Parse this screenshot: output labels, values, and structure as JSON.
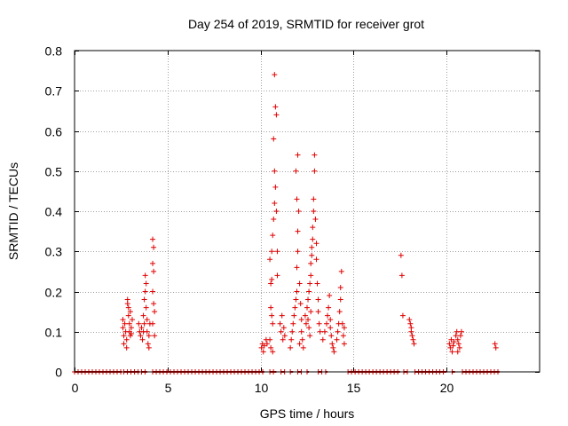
{
  "chart_data": {
    "type": "scatter",
    "title": "Day 254 of 2019, SRMTID for receiver grot",
    "xlabel": "GPS time / hours",
    "ylabel": "SRMTID / TECUs",
    "xlim": [
      0,
      25
    ],
    "ylim": [
      0,
      0.8
    ],
    "xticks": [
      0,
      5,
      10,
      15,
      20
    ],
    "xtick_labels": [
      "0",
      "5",
      "10",
      "15",
      "20"
    ],
    "yticks": [
      0,
      0.1,
      0.2,
      0.3,
      0.4,
      0.5,
      0.6,
      0.7,
      0.8
    ],
    "ytick_labels": [
      "0",
      "0.1",
      "0.2",
      "0.3",
      "0.4",
      "0.5",
      "0.6",
      "0.7",
      "0.8"
    ],
    "grid": true,
    "marker": "+",
    "marker_color": "#e00000",
    "baseline_spans": [
      [
        0.0,
        2.55
      ],
      [
        2.65,
        3.5
      ],
      [
        3.6,
        3.9
      ],
      [
        4.2,
        10.2
      ],
      [
        10.5,
        10.85
      ],
      [
        11.1,
        11.3
      ],
      [
        11.6,
        11.75
      ],
      [
        12.0,
        12.2
      ],
      [
        12.5,
        12.6
      ],
      [
        13.1,
        13.3
      ],
      [
        13.5,
        13.6
      ],
      [
        14.7,
        17.5
      ],
      [
        17.7,
        17.9
      ],
      [
        18.3,
        20.0
      ],
      [
        20.3,
        20.45
      ],
      [
        20.85,
        22.85
      ]
    ],
    "series": [
      {
        "name": "SRMTID",
        "points": [
          [
            2.6,
            0.13
          ],
          [
            2.6,
            0.11
          ],
          [
            2.65,
            0.09
          ],
          [
            2.65,
            0.07
          ],
          [
            2.7,
            0.12
          ],
          [
            2.75,
            0.1
          ],
          [
            2.8,
            0.08
          ],
          [
            2.85,
            0.17
          ],
          [
            2.85,
            0.18
          ],
          [
            2.9,
            0.16
          ],
          [
            2.9,
            0.14
          ],
          [
            2.95,
            0.1
          ],
          [
            2.95,
            0.12
          ],
          [
            3.0,
            0.09
          ],
          [
            3.0,
            0.15
          ],
          [
            3.05,
            0.11
          ],
          [
            3.1,
            0.13
          ],
          [
            2.8,
            0.06
          ],
          [
            3.05,
            0.095
          ],
          [
            3.45,
            0.12
          ],
          [
            3.5,
            0.1
          ],
          [
            3.55,
            0.09
          ],
          [
            3.6,
            0.11
          ],
          [
            3.65,
            0.08
          ],
          [
            3.7,
            0.14
          ],
          [
            3.75,
            0.18
          ],
          [
            3.8,
            0.2
          ],
          [
            3.8,
            0.24
          ],
          [
            3.85,
            0.22
          ],
          [
            3.85,
            0.16
          ],
          [
            3.9,
            0.13
          ],
          [
            3.9,
            0.1
          ],
          [
            3.95,
            0.07
          ],
          [
            4.0,
            0.06
          ],
          [
            4.0,
            0.09
          ],
          [
            4.05,
            0.12
          ],
          [
            3.75,
            0.12
          ],
          [
            3.7,
            0.1
          ],
          [
            4.2,
            0.33
          ],
          [
            4.25,
            0.31
          ],
          [
            4.2,
            0.27
          ],
          [
            4.25,
            0.25
          ],
          [
            4.2,
            0.2
          ],
          [
            4.25,
            0.17
          ],
          [
            4.3,
            0.15
          ],
          [
            4.2,
            0.12
          ],
          [
            4.3,
            0.09
          ],
          [
            10.05,
            0.06
          ],
          [
            10.1,
            0.07
          ],
          [
            10.15,
            0.05
          ],
          [
            10.2,
            0.065
          ],
          [
            10.3,
            0.08
          ],
          [
            10.35,
            0.07
          ],
          [
            10.5,
            0.28
          ],
          [
            10.55,
            0.22
          ],
          [
            10.6,
            0.3
          ],
          [
            10.65,
            0.34
          ],
          [
            10.7,
            0.38
          ],
          [
            10.75,
            0.42
          ],
          [
            10.75,
            0.5
          ],
          [
            10.8,
            0.46
          ],
          [
            10.8,
            0.66
          ],
          [
            10.85,
            0.64
          ],
          [
            10.75,
            0.74
          ],
          [
            10.7,
            0.58
          ],
          [
            10.85,
            0.4
          ],
          [
            10.9,
            0.3
          ],
          [
            10.9,
            0.24
          ],
          [
            10.6,
            0.23
          ],
          [
            10.55,
            0.16
          ],
          [
            10.6,
            0.14
          ],
          [
            10.65,
            0.12
          ],
          [
            10.5,
            0.08
          ],
          [
            10.55,
            0.06
          ],
          [
            10.65,
            0.05
          ],
          [
            11.05,
            0.12
          ],
          [
            11.1,
            0.1
          ],
          [
            11.15,
            0.14
          ],
          [
            11.2,
            0.08
          ],
          [
            11.25,
            0.11
          ],
          [
            11.3,
            0.09
          ],
          [
            11.6,
            0.06
          ],
          [
            11.65,
            0.08
          ],
          [
            11.7,
            0.1
          ],
          [
            11.75,
            0.12
          ],
          [
            11.8,
            0.14
          ],
          [
            11.85,
            0.16
          ],
          [
            11.9,
            0.18
          ],
          [
            11.95,
            0.2
          ],
          [
            11.95,
            0.26
          ],
          [
            12.0,
            0.3
          ],
          [
            12.0,
            0.35
          ],
          [
            11.95,
            0.43
          ],
          [
            11.9,
            0.5
          ],
          [
            12.0,
            0.54
          ],
          [
            12.05,
            0.4
          ],
          [
            12.1,
            0.22
          ],
          [
            12.15,
            0.17
          ],
          [
            12.2,
            0.13
          ],
          [
            12.2,
            0.1
          ],
          [
            12.25,
            0.08
          ],
          [
            12.3,
            0.06
          ],
          [
            12.1,
            0.07
          ],
          [
            12.4,
            0.14
          ],
          [
            12.45,
            0.12
          ],
          [
            12.5,
            0.16
          ],
          [
            12.55,
            0.18
          ],
          [
            12.6,
            0.2
          ],
          [
            12.65,
            0.22
          ],
          [
            12.7,
            0.24
          ],
          [
            12.7,
            0.27
          ],
          [
            12.75,
            0.29
          ],
          [
            12.75,
            0.31
          ],
          [
            12.8,
            0.33
          ],
          [
            12.8,
            0.36
          ],
          [
            12.85,
            0.4
          ],
          [
            12.85,
            0.43
          ],
          [
            12.9,
            0.5
          ],
          [
            12.9,
            0.54
          ],
          [
            12.95,
            0.38
          ],
          [
            13.0,
            0.32
          ],
          [
            13.0,
            0.28
          ],
          [
            13.05,
            0.22
          ],
          [
            13.1,
            0.18
          ],
          [
            13.1,
            0.15
          ],
          [
            13.15,
            0.12
          ],
          [
            13.2,
            0.1
          ],
          [
            12.6,
            0.11
          ],
          [
            12.65,
            0.09
          ],
          [
            12.55,
            0.13
          ],
          [
            12.7,
            0.15
          ],
          [
            13.35,
            0.08
          ],
          [
            13.45,
            0.1
          ],
          [
            13.55,
            0.12
          ],
          [
            13.6,
            0.14
          ],
          [
            13.65,
            0.16
          ],
          [
            13.7,
            0.19
          ],
          [
            13.75,
            0.11
          ],
          [
            13.8,
            0.09
          ],
          [
            13.85,
            0.07
          ],
          [
            13.9,
            0.06
          ],
          [
            13.95,
            0.05
          ],
          [
            13.75,
            0.13
          ],
          [
            14.1,
            0.08
          ],
          [
            14.15,
            0.1
          ],
          [
            14.2,
            0.12
          ],
          [
            14.25,
            0.15
          ],
          [
            14.3,
            0.18
          ],
          [
            14.3,
            0.21
          ],
          [
            14.35,
            0.25
          ],
          [
            14.4,
            0.12
          ],
          [
            14.45,
            0.09
          ],
          [
            14.5,
            0.07
          ],
          [
            14.5,
            0.11
          ],
          [
            17.55,
            0.29
          ],
          [
            17.6,
            0.24
          ],
          [
            17.65,
            0.14
          ],
          [
            18.0,
            0.13
          ],
          [
            18.05,
            0.12
          ],
          [
            18.1,
            0.1
          ],
          [
            18.15,
            0.09
          ],
          [
            18.2,
            0.08
          ],
          [
            18.25,
            0.07
          ],
          [
            18.1,
            0.11
          ],
          [
            20.15,
            0.07
          ],
          [
            20.2,
            0.06
          ],
          [
            20.25,
            0.08
          ],
          [
            20.3,
            0.05
          ],
          [
            20.35,
            0.065
          ],
          [
            20.4,
            0.075
          ],
          [
            20.5,
            0.09
          ],
          [
            20.55,
            0.1
          ],
          [
            20.6,
            0.08
          ],
          [
            20.65,
            0.07
          ],
          [
            20.7,
            0.06
          ],
          [
            20.75,
            0.09
          ],
          [
            20.8,
            0.1
          ],
          [
            20.6,
            0.05
          ],
          [
            22.6,
            0.07
          ],
          [
            22.65,
            0.06
          ]
        ]
      }
    ]
  }
}
